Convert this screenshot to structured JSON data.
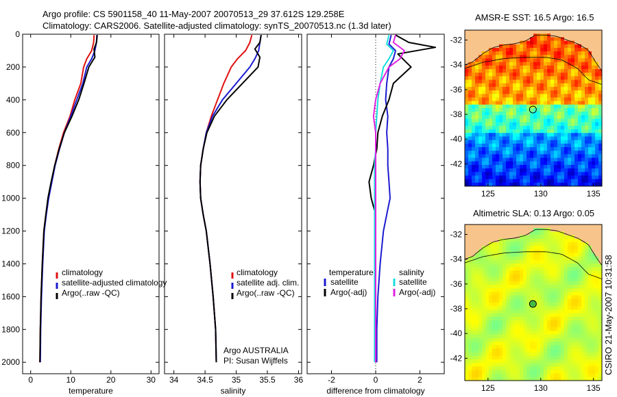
{
  "header": {
    "line1": "Argo profile: CS 5901158_40 11-May-2007 20070513_29 37.612S 129.258E",
    "line2": "Climatology: CARS2006. Satellite-adjusted climatology: synTS_20070513.nc (1.3d later)"
  },
  "colors": {
    "climatology": "#e01010",
    "satellite": "#1a1ad0",
    "argo": "#000000",
    "satellite_salinity": "#18dde0",
    "argo_salinity": "#e020e0"
  },
  "chart_data": [
    {
      "type": "line",
      "xlabel": "temperature",
      "ylabel": "",
      "xlim": [
        -2,
        32
      ],
      "ylim": [
        2070,
        0
      ],
      "xticks": [
        "0",
        "10",
        "20",
        "30"
      ],
      "yticks": [
        "0",
        "200",
        "400",
        "600",
        "800",
        "1000",
        "1200",
        "1400",
        "1600",
        "1800",
        "2000"
      ],
      "legend": [
        "climatology",
        "satellite-adjusted climatology",
        "Argo(..raw -QC)"
      ],
      "legend_position": "lower-center",
      "series": [
        {
          "name": "climatology",
          "color_key": "climatology",
          "x": [
            15.8,
            15.7,
            15.2,
            14.0,
            13.2,
            12.5,
            11.0,
            9.8,
            8.2,
            7.0,
            6.0,
            5.2,
            4.4,
            3.8,
            3.3,
            2.9,
            2.6,
            2.4,
            2.3
          ],
          "y": [
            5,
            50,
            100,
            150,
            200,
            300,
            400,
            500,
            600,
            700,
            800,
            900,
            1000,
            1100,
            1200,
            1400,
            1600,
            1800,
            2000
          ]
        },
        {
          "name": "satellite-adjusted climatology",
          "color_key": "satellite",
          "x": [
            16.5,
            16.4,
            16.0,
            15.2,
            14.0,
            13.0,
            11.5,
            10.0,
            8.4,
            7.2,
            6.1,
            5.3,
            4.5,
            3.9,
            3.4,
            3.0,
            2.7,
            2.5,
            2.4
          ],
          "y": [
            5,
            50,
            100,
            150,
            200,
            300,
            400,
            500,
            600,
            700,
            800,
            900,
            1000,
            1100,
            1200,
            1400,
            1600,
            1800,
            2000
          ]
        },
        {
          "name": "Argo(..raw -QC)",
          "color_key": "argo",
          "x": [
            16.6,
            16.4,
            15.8,
            16.0,
            14.5,
            13.3,
            12.0,
            10.3,
            8.4,
            7.1,
            6.0,
            5.1,
            4.3,
            3.8,
            3.3,
            2.9,
            2.6,
            2.4,
            2.3
          ],
          "y": [
            5,
            50,
            90,
            140,
            200,
            300,
            400,
            500,
            600,
            700,
            800,
            900,
            1000,
            1100,
            1200,
            1400,
            1600,
            1800,
            2000
          ]
        }
      ]
    },
    {
      "type": "line",
      "xlabel": "salinity",
      "ylabel": "",
      "xlim": [
        33.85,
        36.05
      ],
      "ylim": [
        2070,
        0
      ],
      "xticks": [
        "34",
        "34.5",
        "35",
        "35.5",
        "36"
      ],
      "legend": [
        "climatology",
        "satellite adj. clim.",
        "Argo(..raw -QC)"
      ],
      "annotation": [
        "Argo AUSTRALIA",
        "PI: Susan Wijffels"
      ],
      "series": [
        {
          "name": "climatology",
          "color_key": "climatology",
          "x": [
            35.25,
            35.22,
            35.15,
            35.02,
            34.92,
            34.8,
            34.7,
            34.6,
            34.52,
            34.47,
            34.43,
            34.42,
            34.43,
            34.47,
            34.52,
            34.58,
            34.63,
            34.67,
            34.68
          ],
          "y": [
            5,
            50,
            100,
            150,
            200,
            300,
            400,
            500,
            600,
            700,
            800,
            900,
            1000,
            1100,
            1200,
            1400,
            1600,
            1800,
            2000
          ]
        },
        {
          "name": "satellite adj. clim.",
          "color_key": "satellite",
          "x": [
            35.4,
            35.38,
            35.36,
            35.3,
            35.22,
            35.0,
            34.78,
            34.62,
            34.52,
            34.47,
            34.43,
            34.42,
            34.43,
            34.47,
            34.52,
            34.58,
            34.63,
            34.67,
            34.68
          ],
          "y": [
            5,
            50,
            100,
            150,
            200,
            300,
            400,
            500,
            600,
            700,
            800,
            900,
            1000,
            1100,
            1200,
            1400,
            1600,
            1800,
            2000
          ]
        },
        {
          "name": "Argo(..raw -QC)",
          "color_key": "argo",
          "x": [
            35.4,
            35.38,
            35.3,
            35.38,
            35.35,
            35.1,
            34.85,
            34.65,
            34.53,
            34.47,
            34.43,
            34.42,
            34.43,
            34.47,
            34.52,
            34.58,
            34.63,
            34.67,
            34.68
          ],
          "y": [
            5,
            50,
            90,
            140,
            200,
            300,
            400,
            500,
            600,
            700,
            800,
            900,
            1000,
            1100,
            1200,
            1400,
            1600,
            1800,
            2000
          ]
        }
      ]
    },
    {
      "type": "line",
      "xlabel": "difference from climatology",
      "ylabel": "",
      "xlim": [
        -3.1,
        3.1
      ],
      "ylim": [
        2070,
        0
      ],
      "xticks": [
        "-2",
        "0",
        "2"
      ],
      "legend_groups": [
        {
          "title": "temperature",
          "items": [
            "satellite",
            "Argo(-adj)"
          ]
        },
        {
          "title": "salinity",
          "items": [
            "satellite",
            "Argo(-adj)"
          ]
        }
      ],
      "series": [
        {
          "name": "temperature satellite",
          "color_key": "satellite",
          "x": [
            0.7,
            0.6,
            0.9,
            0.8,
            0.6,
            0.5,
            0.45,
            0.55,
            0.5,
            0.55,
            0.55,
            0.6,
            0.65,
            0.5,
            0.35,
            0.2,
            0.1,
            0.05,
            0.05
          ],
          "y": [
            5,
            60,
            100,
            150,
            200,
            300,
            400,
            500,
            600,
            700,
            800,
            900,
            1000,
            1100,
            1200,
            1400,
            1600,
            1800,
            2000
          ]
        },
        {
          "name": "temperature Argo(-adj)",
          "color_key": "argo",
          "x": [
            0.9,
            1.5,
            2.7,
            1.0,
            1.6,
            0.8,
            0.6,
            0.3,
            0.1,
            0.05,
            -0.1,
            -0.3,
            -0.2,
            0.0,
            0.0,
            0.0,
            0.0,
            0.0,
            0.0
          ],
          "y": [
            5,
            50,
            80,
            120,
            200,
            300,
            400,
            500,
            600,
            700,
            800,
            900,
            1000,
            1100,
            1200,
            1400,
            1600,
            1800,
            2000
          ]
        },
        {
          "name": "salinity satellite",
          "color_key": "satellite_salinity",
          "x": [
            0.6,
            0.5,
            0.8,
            0.6,
            0.35,
            0.2,
            0.1,
            0.05,
            0.0,
            0.0,
            -0.05,
            -0.05,
            -0.05,
            -0.05,
            -0.05,
            -0.05,
            -0.05,
            -0.05,
            -0.05
          ],
          "y": [
            5,
            60,
            100,
            150,
            200,
            300,
            400,
            500,
            600,
            700,
            800,
            900,
            1000,
            1100,
            1200,
            1400,
            1600,
            1800,
            2000
          ]
        },
        {
          "name": "salinity Argo(-adj)",
          "color_key": "argo_salinity",
          "x": [
            0.9,
            0.8,
            1.3,
            1.1,
            0.6,
            0.2,
            0.0,
            -0.1,
            0.0,
            0.0,
            0.0,
            0.0,
            0.0,
            0.0,
            0.0,
            0.0,
            0.0,
            0.0,
            0.0
          ],
          "y": [
            5,
            50,
            100,
            150,
            200,
            300,
            400,
            500,
            600,
            700,
            800,
            900,
            1000,
            1100,
            1200,
            1400,
            1600,
            1800,
            2000
          ]
        }
      ]
    },
    {
      "type": "heatmap",
      "title": "AMSR-E SST: 16.5 Argo: 16.5",
      "xlim": [
        122.8,
        135.8
      ],
      "ylim": [
        -43.8,
        -31.2
      ],
      "xticks": [
        "125",
        "130",
        "135"
      ],
      "yticks": [
        "-32",
        "-34",
        "-36",
        "-38",
        "-40",
        "-42"
      ],
      "profile_location": {
        "lon": 129.258,
        "lat": -37.612
      },
      "colormap": "jet",
      "land_color": "#f7c48c"
    },
    {
      "type": "heatmap",
      "title": "Altimetric SLA: 0.13 Argo: 0.05",
      "xlim": [
        122.8,
        135.8
      ],
      "ylim": [
        -43.8,
        -31.2
      ],
      "xticks": [
        "125",
        "130",
        "135"
      ],
      "yticks": [
        "-32",
        "-34",
        "-36",
        "-38",
        "-40",
        "-42"
      ],
      "profile_location": {
        "lon": 129.258,
        "lat": -37.612
      },
      "colormap": "jet",
      "land_color": "#f7c48c"
    }
  ],
  "footer": {
    "credit": "CSIRO 21-May-2007 10:31:58"
  }
}
